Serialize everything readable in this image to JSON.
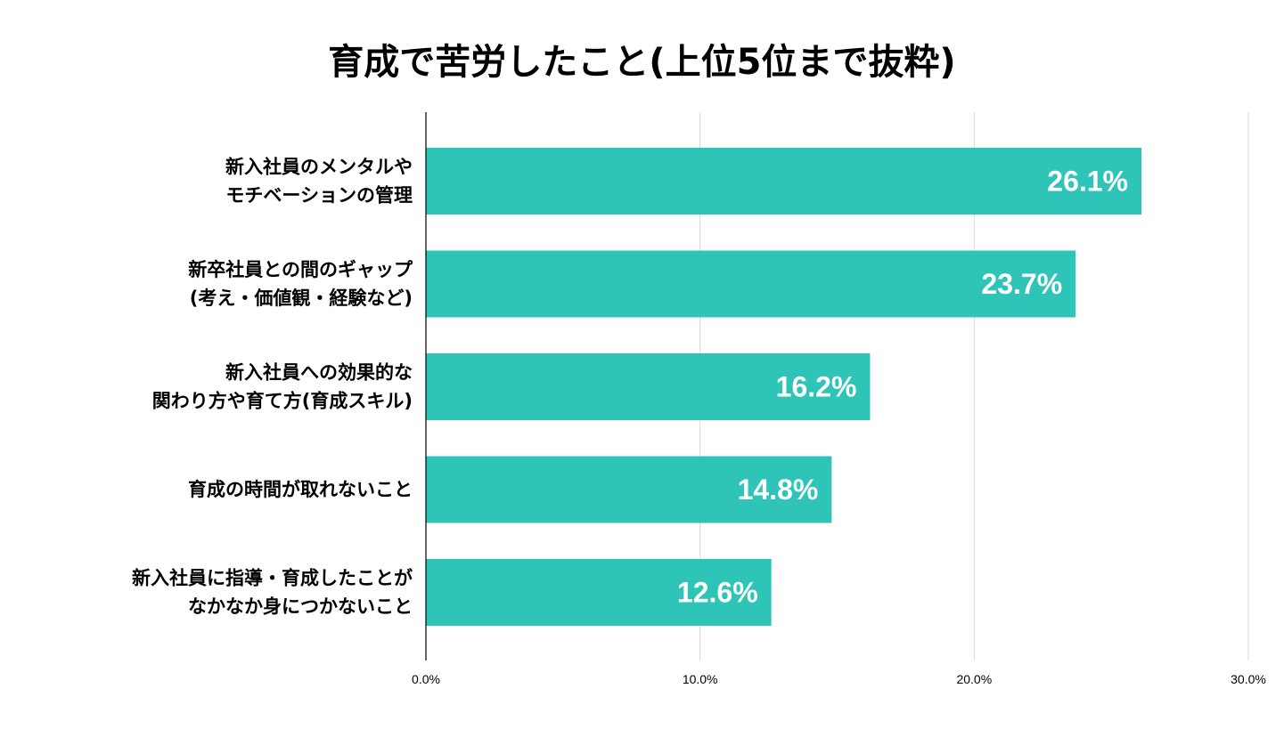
{
  "chart_data": {
    "type": "bar",
    "orientation": "horizontal",
    "title": "育成で苦労したこと(上位5位まで抜粋)",
    "categories": [
      [
        "新入社員のメンタルや",
        "モチベーションの管理"
      ],
      [
        "新卒社員との間のギャップ",
        "(考え・価値観・経験など)"
      ],
      [
        "新入社員への効果的な",
        "関わり方や育て方(育成スキル)"
      ],
      [
        "育成の時間が取れないこと"
      ],
      [
        "新入社員に指導・育成したことが",
        "なかなか身につかないこと"
      ]
    ],
    "values": [
      26.1,
      23.7,
      16.2,
      14.8,
      12.6
    ],
    "value_labels": [
      "26.1%",
      "23.7%",
      "16.2%",
      "14.8%",
      "12.6%"
    ],
    "xlim": [
      0,
      30
    ],
    "x_ticks": [
      0,
      10,
      20,
      30
    ],
    "x_tick_labels": [
      "0.0%",
      "10.0%",
      "20.0%",
      "30.0%"
    ],
    "xlabel": "",
    "ylabel": "",
    "grid": true,
    "legend": "none",
    "bar_color": "#2ec4b8",
    "grid_color": "#d9d9d9",
    "axis_color": "#000000"
  }
}
